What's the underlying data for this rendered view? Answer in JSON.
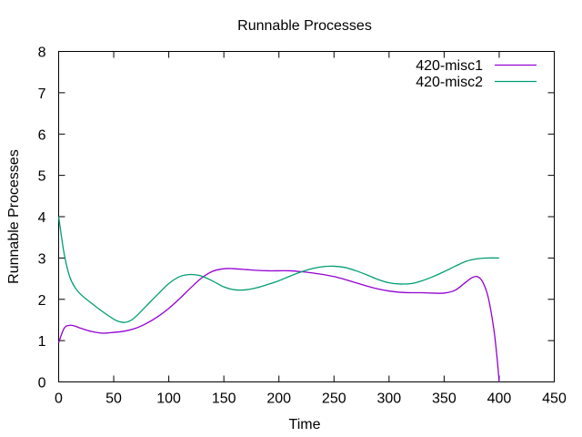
{
  "chart_data": {
    "type": "line",
    "title": "Runnable Processes",
    "xlabel": "Time",
    "ylabel": "Runnable Processes",
    "xlim": [
      0,
      450
    ],
    "ylim": [
      0,
      8
    ],
    "xticks": [
      0,
      50,
      100,
      150,
      200,
      250,
      300,
      350,
      400,
      450
    ],
    "yticks": [
      0,
      1,
      2,
      3,
      4,
      5,
      6,
      7,
      8
    ],
    "grid": false,
    "legend_position": "top-right",
    "series": [
      {
        "name": "420-misc1",
        "color": "#9400d3",
        "x": [
          0,
          5,
          10,
          15,
          20,
          30,
          40,
          50,
          60,
          70,
          80,
          90,
          100,
          110,
          120,
          130,
          140,
          150,
          160,
          170,
          180,
          190,
          200,
          210,
          220,
          230,
          240,
          250,
          260,
          270,
          280,
          290,
          300,
          310,
          320,
          330,
          340,
          350,
          360,
          370,
          375,
          380,
          385,
          390,
          395,
          398,
          400
        ],
        "y": [
          0.95,
          1.3,
          1.37,
          1.35,
          1.3,
          1.22,
          1.18,
          1.2,
          1.23,
          1.3,
          1.42,
          1.58,
          1.78,
          2.02,
          2.28,
          2.52,
          2.68,
          2.74,
          2.74,
          2.72,
          2.7,
          2.69,
          2.69,
          2.69,
          2.67,
          2.64,
          2.6,
          2.55,
          2.48,
          2.4,
          2.32,
          2.25,
          2.2,
          2.17,
          2.16,
          2.16,
          2.15,
          2.15,
          2.22,
          2.42,
          2.52,
          2.55,
          2.42,
          2.05,
          1.3,
          0.6,
          0.0
        ]
      },
      {
        "name": "420-misc2",
        "color": "#009e73",
        "x": [
          0,
          5,
          10,
          15,
          20,
          30,
          40,
          50,
          55,
          60,
          65,
          70,
          80,
          90,
          100,
          110,
          120,
          130,
          140,
          150,
          160,
          170,
          180,
          190,
          200,
          210,
          220,
          230,
          240,
          250,
          260,
          270,
          280,
          290,
          300,
          310,
          320,
          330,
          340,
          350,
          360,
          370,
          380,
          390,
          400
        ],
        "y": [
          4.0,
          3.1,
          2.55,
          2.28,
          2.12,
          1.9,
          1.7,
          1.52,
          1.46,
          1.44,
          1.48,
          1.58,
          1.85,
          2.12,
          2.38,
          2.55,
          2.6,
          2.56,
          2.44,
          2.3,
          2.23,
          2.23,
          2.28,
          2.36,
          2.45,
          2.56,
          2.66,
          2.74,
          2.79,
          2.8,
          2.77,
          2.69,
          2.59,
          2.48,
          2.4,
          2.37,
          2.38,
          2.45,
          2.55,
          2.67,
          2.8,
          2.92,
          2.98,
          3.0,
          3.0
        ]
      }
    ]
  }
}
